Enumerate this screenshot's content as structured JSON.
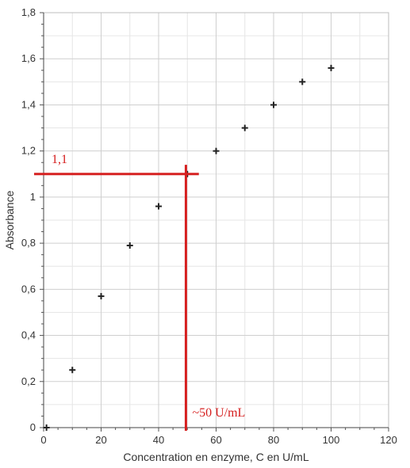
{
  "chart_data": {
    "type": "scatter",
    "title": "",
    "xlabel": "Concentration en enzyme, C en U/mL",
    "ylabel": "Absorbance",
    "xlim": [
      0,
      120
    ],
    "ylim": [
      0,
      1.8
    ],
    "x_ticks": [
      "0",
      "20",
      "40",
      "60",
      "80",
      "100",
      "120"
    ],
    "y_ticks": [
      "0",
      "0,2",
      "0,4",
      "0,6",
      "0,8",
      "1",
      "1,2",
      "1,4",
      "1,6",
      "1,8"
    ],
    "grid": true,
    "marker": "+",
    "points": [
      {
        "x": 1,
        "y": 0
      },
      {
        "x": 10,
        "y": 0.25
      },
      {
        "x": 20,
        "y": 0.57
      },
      {
        "x": 30,
        "y": 0.79
      },
      {
        "x": 40,
        "y": 0.96
      },
      {
        "x": 50,
        "y": 1.1
      },
      {
        "x": 60,
        "y": 1.2
      },
      {
        "x": 70,
        "y": 1.3
      },
      {
        "x": 80,
        "y": 1.4
      },
      {
        "x": 90,
        "y": 1.5
      },
      {
        "x": 100,
        "y": 1.56
      }
    ],
    "annotations": {
      "y_label": "1,1",
      "x_label": "~50 U/mL",
      "y_value": 1.1,
      "x_value": 49.5,
      "color": "#d62020"
    }
  }
}
